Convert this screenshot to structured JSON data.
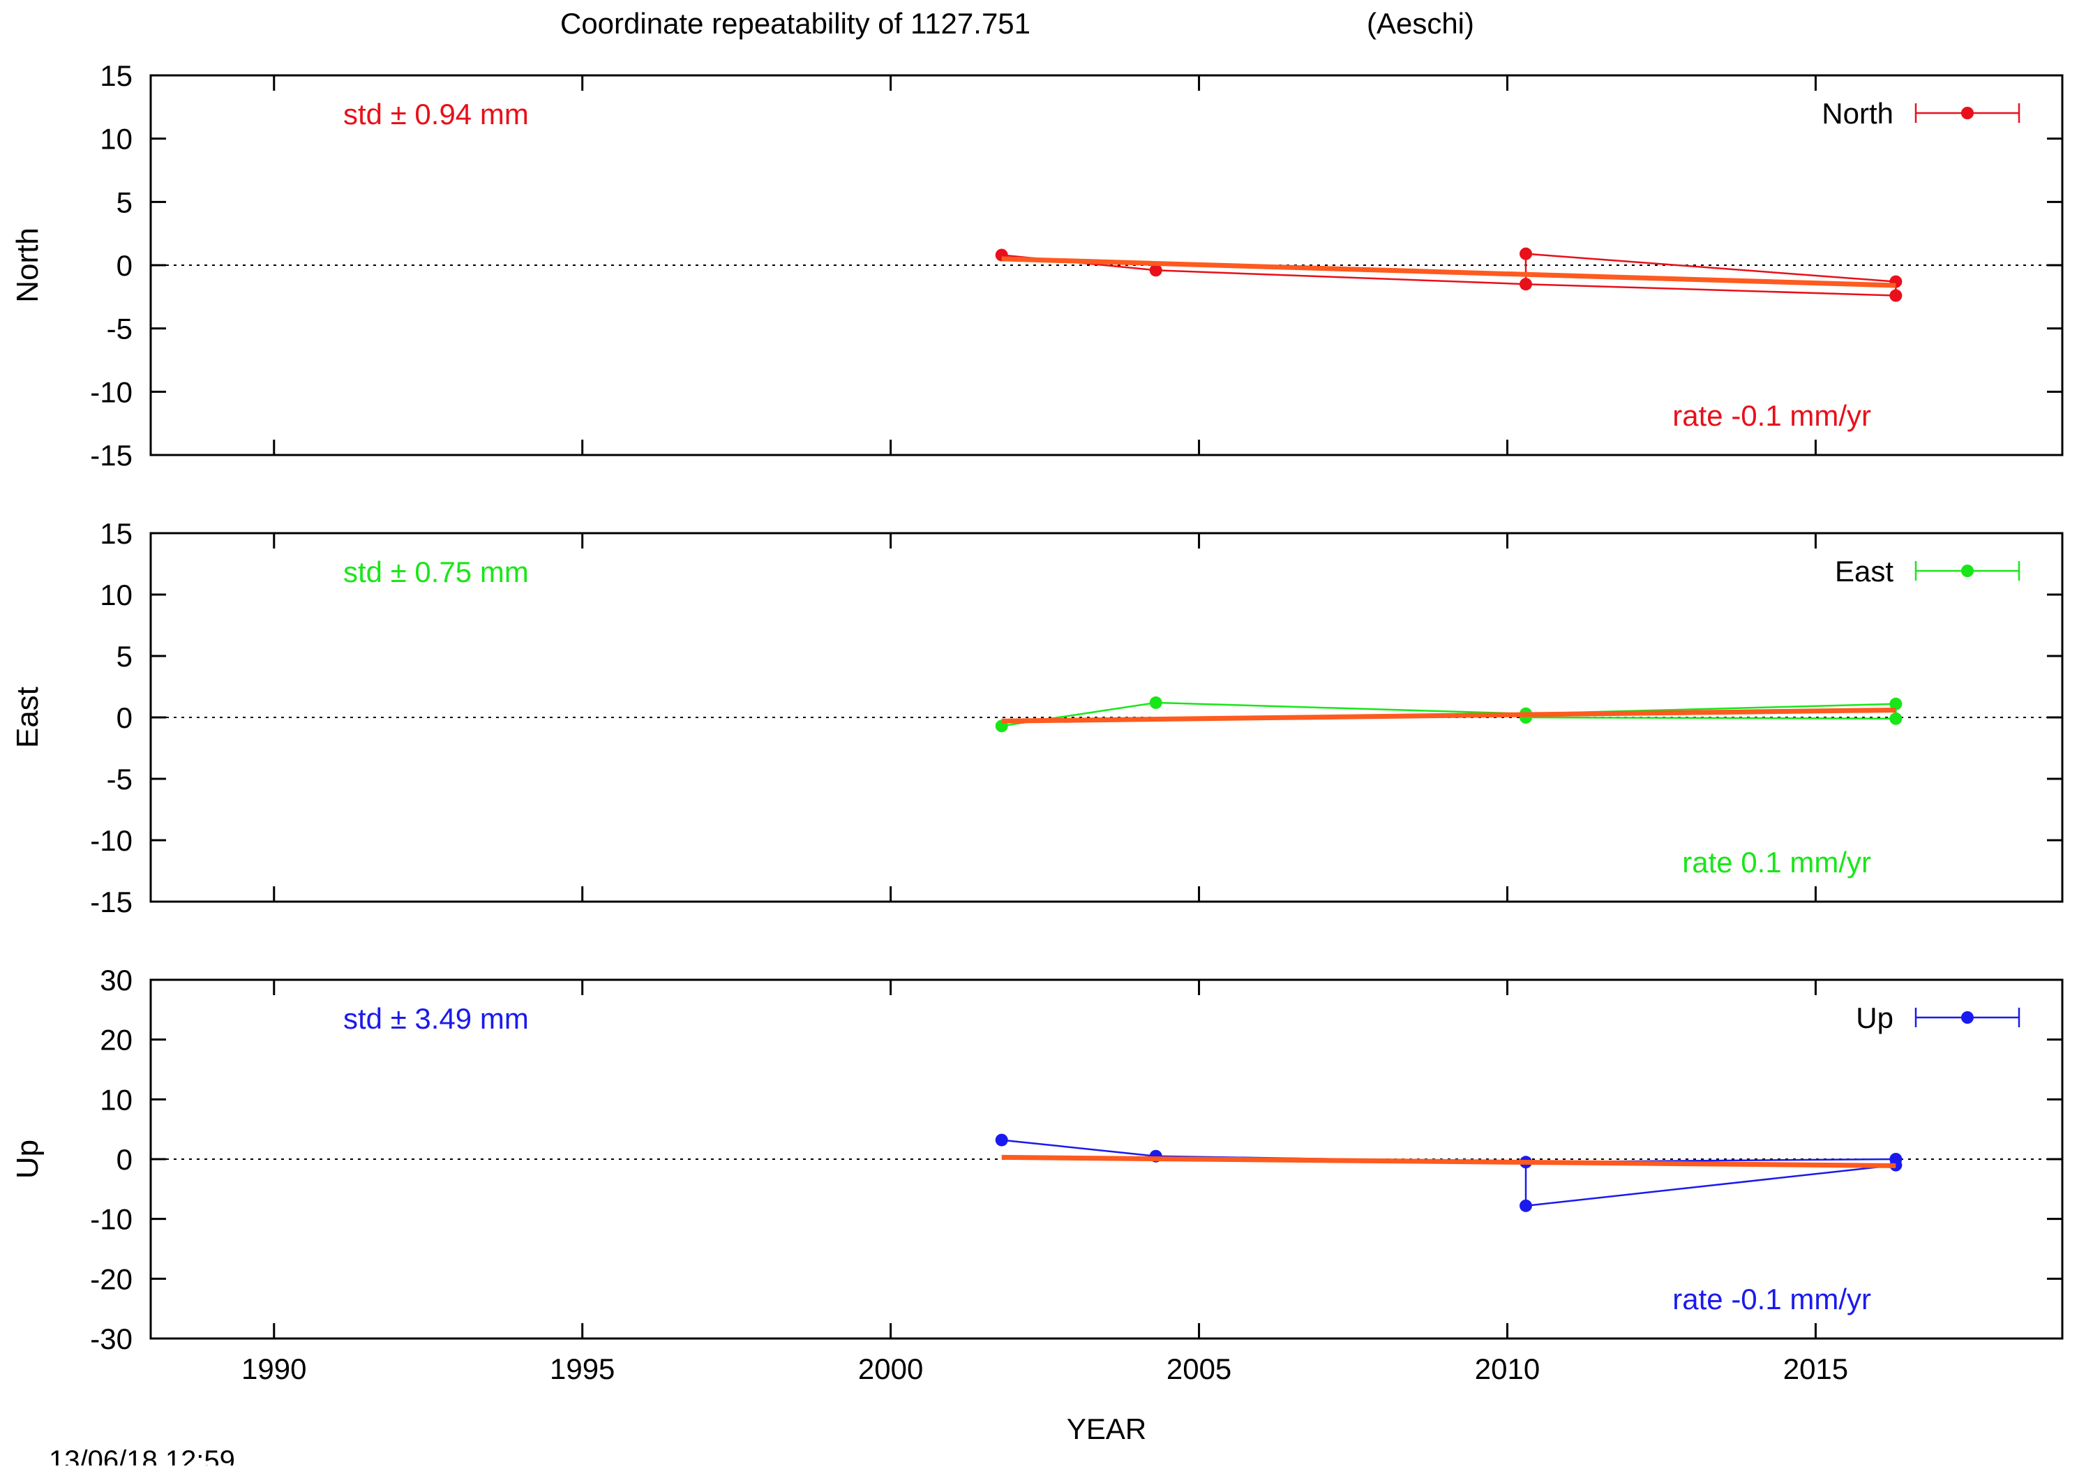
{
  "title": "Coordinate repeatability of 1127.751",
  "station": "(Aeschi)",
  "timestamp": "13/06/18 12:59",
  "xlabel": "YEAR",
  "x_ticks": [
    "1990",
    "1995",
    "2000",
    "2005",
    "2010",
    "2015"
  ],
  "colors": {
    "trend": "#ff5a1f",
    "zero_line": "#000000",
    "frame": "#000000"
  },
  "chart_data": [
    {
      "type": "line",
      "ylabel": "North",
      "ylim": [
        -15,
        15
      ],
      "y_ticks": [
        "15",
        "10",
        "5",
        "0",
        "-5",
        "-10",
        "-15"
      ],
      "xlim": [
        1988,
        2019
      ],
      "std_text": "std ± 0.94 mm",
      "rate_text": "rate -0.1 mm/yr",
      "legend": "North",
      "color": "#e8101a",
      "series": [
        {
          "x": [
            2001.8,
            2004.3,
            2010.3,
            2016.3
          ],
          "y": [
            0.8,
            -0.4,
            -1.5,
            -2.4
          ]
        },
        {
          "x": [
            2010.3,
            2016.3
          ],
          "y": [
            0.9,
            -1.3
          ]
        }
      ],
      "errorbars": [
        {
          "x": 2010.3,
          "y0": -1.5,
          "y1": 0.9
        },
        {
          "x": 2016.3,
          "y0": -2.4,
          "y1": -1.3
        }
      ],
      "trend": {
        "x": [
          2001.8,
          2016.3
        ],
        "y": [
          0.5,
          -1.6
        ]
      }
    },
    {
      "type": "line",
      "ylabel": "East",
      "ylim": [
        -15,
        15
      ],
      "y_ticks": [
        "15",
        "10",
        "5",
        "0",
        "-5",
        "-10",
        "-15"
      ],
      "xlim": [
        1988,
        2019
      ],
      "std_text": "std ± 0.75 mm",
      "rate_text": "rate  0.1 mm/yr",
      "legend": "East",
      "color": "#19e619",
      "series": [
        {
          "x": [
            2001.8,
            2004.3,
            2010.3,
            2016.3
          ],
          "y": [
            -0.7,
            1.2,
            0.3,
            1.1
          ]
        },
        {
          "x": [
            2010.3,
            2016.3
          ],
          "y": [
            0.0,
            -0.1
          ]
        }
      ],
      "errorbars": [
        {
          "x": 2010.3,
          "y0": 0.0,
          "y1": 0.3
        },
        {
          "x": 2016.3,
          "y0": -0.1,
          "y1": 1.1
        }
      ],
      "trend": {
        "x": [
          2001.8,
          2016.3
        ],
        "y": [
          -0.3,
          0.6
        ]
      }
    },
    {
      "type": "line",
      "ylabel": "Up",
      "ylim": [
        -30,
        30
      ],
      "y_ticks": [
        "30",
        "20",
        "10",
        "0",
        "-10",
        "-20",
        "-30"
      ],
      "xlim": [
        1988,
        2019
      ],
      "std_text": "std ± 3.49 mm",
      "rate_text": "rate -0.1 mm/yr",
      "legend": "Up",
      "color": "#1a1aee",
      "series": [
        {
          "x": [
            2001.8,
            2004.3,
            2010.3,
            2016.3
          ],
          "y": [
            3.2,
            0.5,
            -0.5,
            0.0
          ]
        },
        {
          "x": [
            2010.3,
            2016.3
          ],
          "y": [
            -7.8,
            -1.0
          ]
        }
      ],
      "errorbars": [
        {
          "x": 2010.3,
          "y0": -7.8,
          "y1": -0.5
        },
        {
          "x": 2016.3,
          "y0": -1.0,
          "y1": 0.0
        }
      ],
      "trend": {
        "x": [
          2001.8,
          2016.3
        ],
        "y": [
          0.3,
          -1.1
        ]
      }
    }
  ]
}
